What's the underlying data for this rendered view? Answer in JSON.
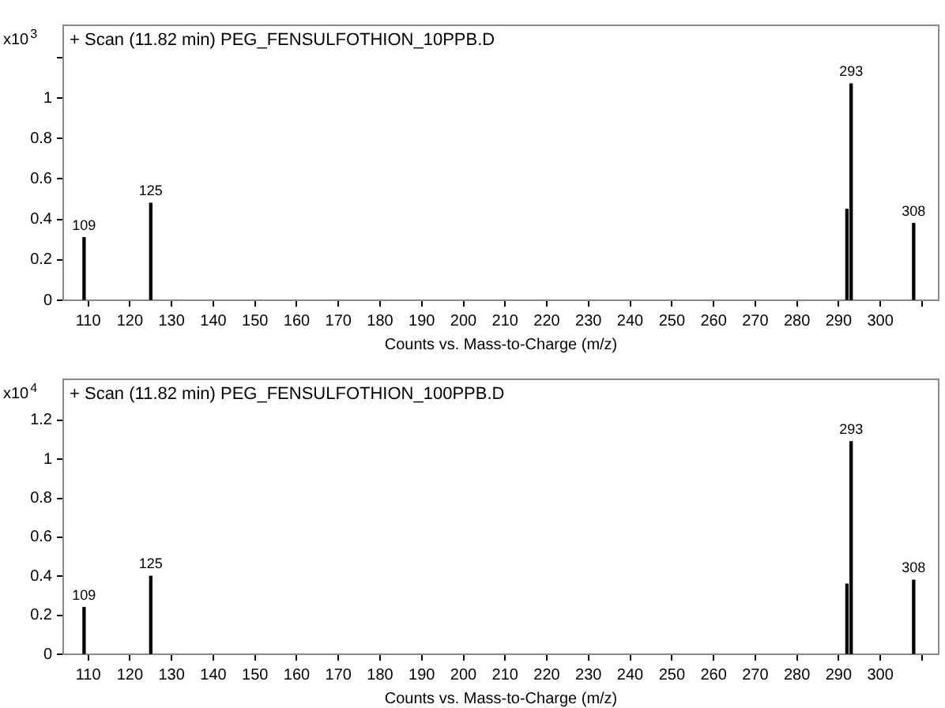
{
  "chart_data": [
    {
      "type": "bar",
      "title": "+ Scan (11.82 min) PEG_FENSULFOTHION_10PPB.D",
      "xlabel": "Counts vs. Mass-to-Charge (m/z)",
      "ylabel": "x10$^{3}$",
      "x": [
        109,
        125,
        292,
        293,
        308
      ],
      "values": [
        0.31,
        0.48,
        0.45,
        1.07,
        0.38
      ],
      "color": "#000000",
      "annotations": [
        {
          "text": "109",
          "x": 109,
          "y": 0.31
        },
        {
          "text": "125",
          "x": 125,
          "y": 0.48
        },
        {
          "text": "293",
          "x": 293,
          "y": 1.07
        },
        {
          "text": "308",
          "x": 308,
          "y": 0.38
        }
      ],
      "xlim": [
        104,
        314
      ],
      "xticks": [
        110,
        120,
        130,
        140,
        150,
        160,
        170,
        180,
        190,
        200,
        210,
        220,
        230,
        240,
        250,
        260,
        270,
        280,
        290,
        300,
        {
          "value": 310,
          "label": null
        }
      ],
      "ylim": [
        0,
        1.36
      ],
      "yticks": [
        0,
        0.2,
        0.4,
        0.6,
        0.8,
        1,
        {
          "value": 1.2,
          "label": null
        }
      ],
      "grid": false,
      "legend": false
    },
    {
      "type": "bar",
      "title": "+ Scan (11.82 min) PEG_FENSULFOTHION_100PPB.D",
      "xlabel": "Counts vs. Mass-to-Charge (m/z)",
      "ylabel": "x10$^{4}$",
      "x": [
        109,
        125,
        292,
        293,
        308
      ],
      "values": [
        0.24,
        0.4,
        0.36,
        1.09,
        0.38
      ],
      "color": "#000000",
      "annotations": [
        {
          "text": "109",
          "x": 109,
          "y": 0.24
        },
        {
          "text": "125",
          "x": 125,
          "y": 0.4
        },
        {
          "text": "293",
          "x": 293,
          "y": 1.09
        },
        {
          "text": "308",
          "x": 308,
          "y": 0.38
        }
      ],
      "xlim": [
        104,
        314
      ],
      "xticks": [
        110,
        120,
        130,
        140,
        150,
        160,
        170,
        180,
        190,
        200,
        210,
        220,
        230,
        240,
        250,
        260,
        270,
        280,
        290,
        300,
        {
          "value": 310,
          "label": null
        }
      ],
      "ylim": [
        0,
        1.41
      ],
      "yticks": [
        0,
        0.2,
        0.4,
        0.6,
        0.8,
        1,
        1.2
      ],
      "grid": false,
      "legend": false
    }
  ]
}
